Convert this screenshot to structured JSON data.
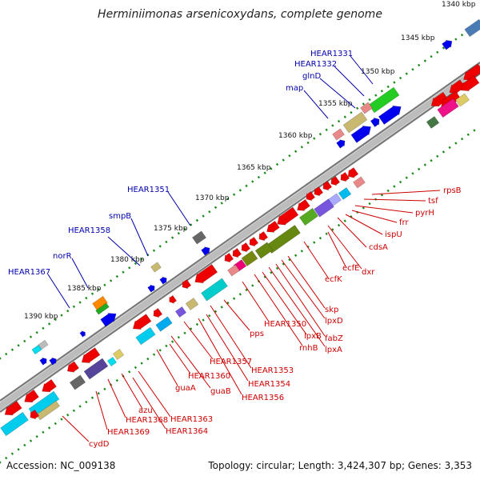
{
  "title": "Herminiimonas arsenicoxydans, complete genome",
  "accession": "Accession: NC_009138",
  "summary": "Topology: circular; Length: 3,424,307 bp; Genes: 3,353",
  "colors": {
    "backbone": "#888888",
    "tick": "#1a8a1a",
    "blue_label": "#0000aa",
    "red_label": "#cc0000",
    "forward_genes": "#0000ee",
    "reverse_genes": "#ee0000"
  },
  "kbp_ticks": [
    {
      "label": "1340 kbp",
      "kbp": 1340
    },
    {
      "label": "1345 kbp",
      "kbp": 1345
    },
    {
      "label": "1350 kbp",
      "kbp": 1350
    },
    {
      "label": "1355 kbp",
      "kbp": 1355
    },
    {
      "label": "1360 kbp",
      "kbp": 1360
    },
    {
      "label": "1365 kbp",
      "kbp": 1365
    },
    {
      "label": "1370 kbp",
      "kbp": 1370
    },
    {
      "label": "1375 kbp",
      "kbp": 1375
    },
    {
      "label": "1380 kbp",
      "kbp": 1380
    },
    {
      "label": "1385 kbp",
      "kbp": 1385
    },
    {
      "label": "1390 kbp",
      "kbp": 1390
    }
  ],
  "forward_labels": [
    "HEAR1331",
    "HEAR1332",
    "glnD",
    "map",
    "HEAR1351",
    "smpB",
    "HEAR1358",
    "norR",
    "HEAR1367"
  ],
  "reverse_labels": [
    "rpsB",
    "tsf",
    "pyrH",
    "frr",
    "ispU",
    "cdsA",
    "dxr",
    "ecfE",
    "ecfK",
    "skp",
    "lpxD",
    "fabZ",
    "lpxA",
    "lpxB",
    "rnhB",
    "HEAR1350",
    "pps",
    "HEAR1353",
    "HEAR1354",
    "HEAR1356",
    "HEAR1357",
    "guaB",
    "HEAR1360",
    "guaA",
    "HEAR1363",
    "HEAR1364",
    "azu",
    "HEAR1368",
    "HEAR1369",
    "cydD"
  ]
}
